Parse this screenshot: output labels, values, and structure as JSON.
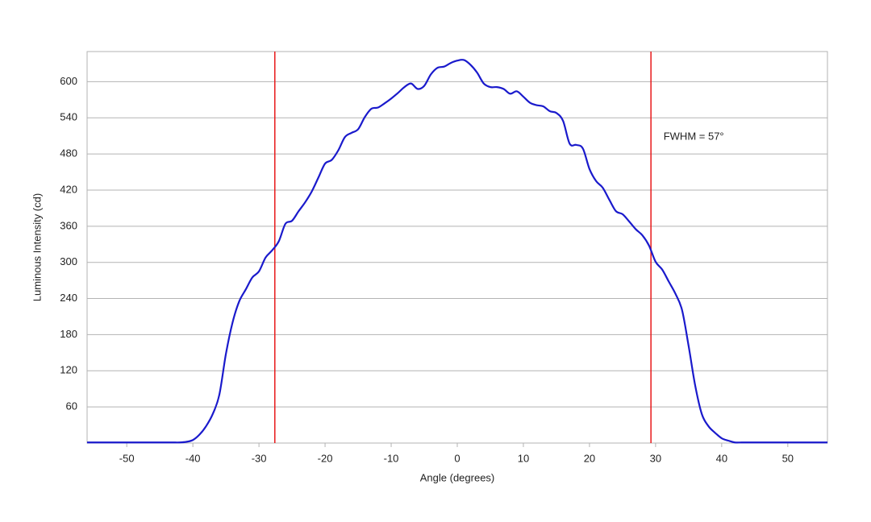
{
  "chart_data": {
    "type": "line",
    "xlabel": "Angle (degrees)",
    "ylabel": "Luminous Intensity (cd)",
    "x": [
      -56,
      -55,
      -54,
      -53,
      -52,
      -51,
      -50,
      -49,
      -48,
      -47,
      -46,
      -45,
      -44,
      -43,
      -42,
      -41,
      -40,
      -39,
      -38,
      -37,
      -36,
      -35,
      -34,
      -33,
      -32,
      -31,
      -30,
      -29,
      -28,
      -27,
      -26,
      -25,
      -24,
      -23,
      -22,
      -21,
      -20,
      -19,
      -18,
      -17,
      -16,
      -15,
      -14,
      -13,
      -12,
      -11,
      -10,
      -9,
      -8,
      -7,
      -6,
      -5,
      -4,
      -3,
      -2,
      -1,
      0,
      1,
      2,
      3,
      4,
      5,
      6,
      7,
      8,
      9,
      10,
      11,
      12,
      13,
      14,
      15,
      16,
      17,
      18,
      19,
      20,
      21,
      22,
      23,
      24,
      25,
      26,
      27,
      28,
      29,
      30,
      31,
      32,
      33,
      34,
      35,
      36,
      37,
      38,
      39,
      40,
      41,
      42,
      43,
      44,
      45,
      46,
      47,
      48,
      49,
      50,
      51,
      52,
      53,
      54,
      55,
      56
    ],
    "series": [
      {
        "color": "#1a1acc",
        "values": [
          1,
          1,
          1,
          1,
          1,
          1,
          1,
          1,
          1,
          1,
          1,
          1,
          1,
          1,
          1,
          2,
          5,
          14,
          28,
          48,
          80,
          148,
          200,
          235,
          255,
          275,
          285,
          308,
          320,
          335,
          364,
          369,
          385,
          400,
          418,
          441,
          464,
          470,
          486,
          508,
          515,
          521,
          541,
          555,
          557,
          564,
          572,
          581,
          591,
          597,
          588,
          593,
          612,
          623,
          625,
          631,
          635,
          636,
          628,
          615,
          597,
          591,
          591,
          588,
          580,
          584,
          575,
          565,
          561,
          559,
          551,
          548,
          535,
          497,
          495,
          489,
          455,
          435,
          424,
          404,
          385,
          380,
          368,
          355,
          345,
          328,
          301,
          288,
          268,
          248,
          221,
          161,
          95,
          48,
          28,
          17,
          8,
          4,
          1,
          1,
          1,
          1,
          1,
          1,
          1,
          1,
          1,
          1,
          1,
          1,
          1,
          1,
          1
        ]
      }
    ],
    "vlines": [
      {
        "x": -27.6,
        "color": "#e8191a"
      },
      {
        "x": 29.3,
        "color": "#e8191a"
      }
    ],
    "annotations": [
      {
        "text": "FWHM = 57°",
        "x": 31.2,
        "y": 508
      }
    ],
    "xlim": [
      -56,
      56
    ],
    "ylim": [
      0,
      650
    ],
    "xticks": [
      -50,
      -40,
      -30,
      -20,
      -10,
      0,
      10,
      20,
      30,
      40,
      50
    ],
    "yticks": [
      60,
      120,
      180,
      240,
      300,
      360,
      420,
      480,
      540,
      600
    ],
    "grid": true
  }
}
